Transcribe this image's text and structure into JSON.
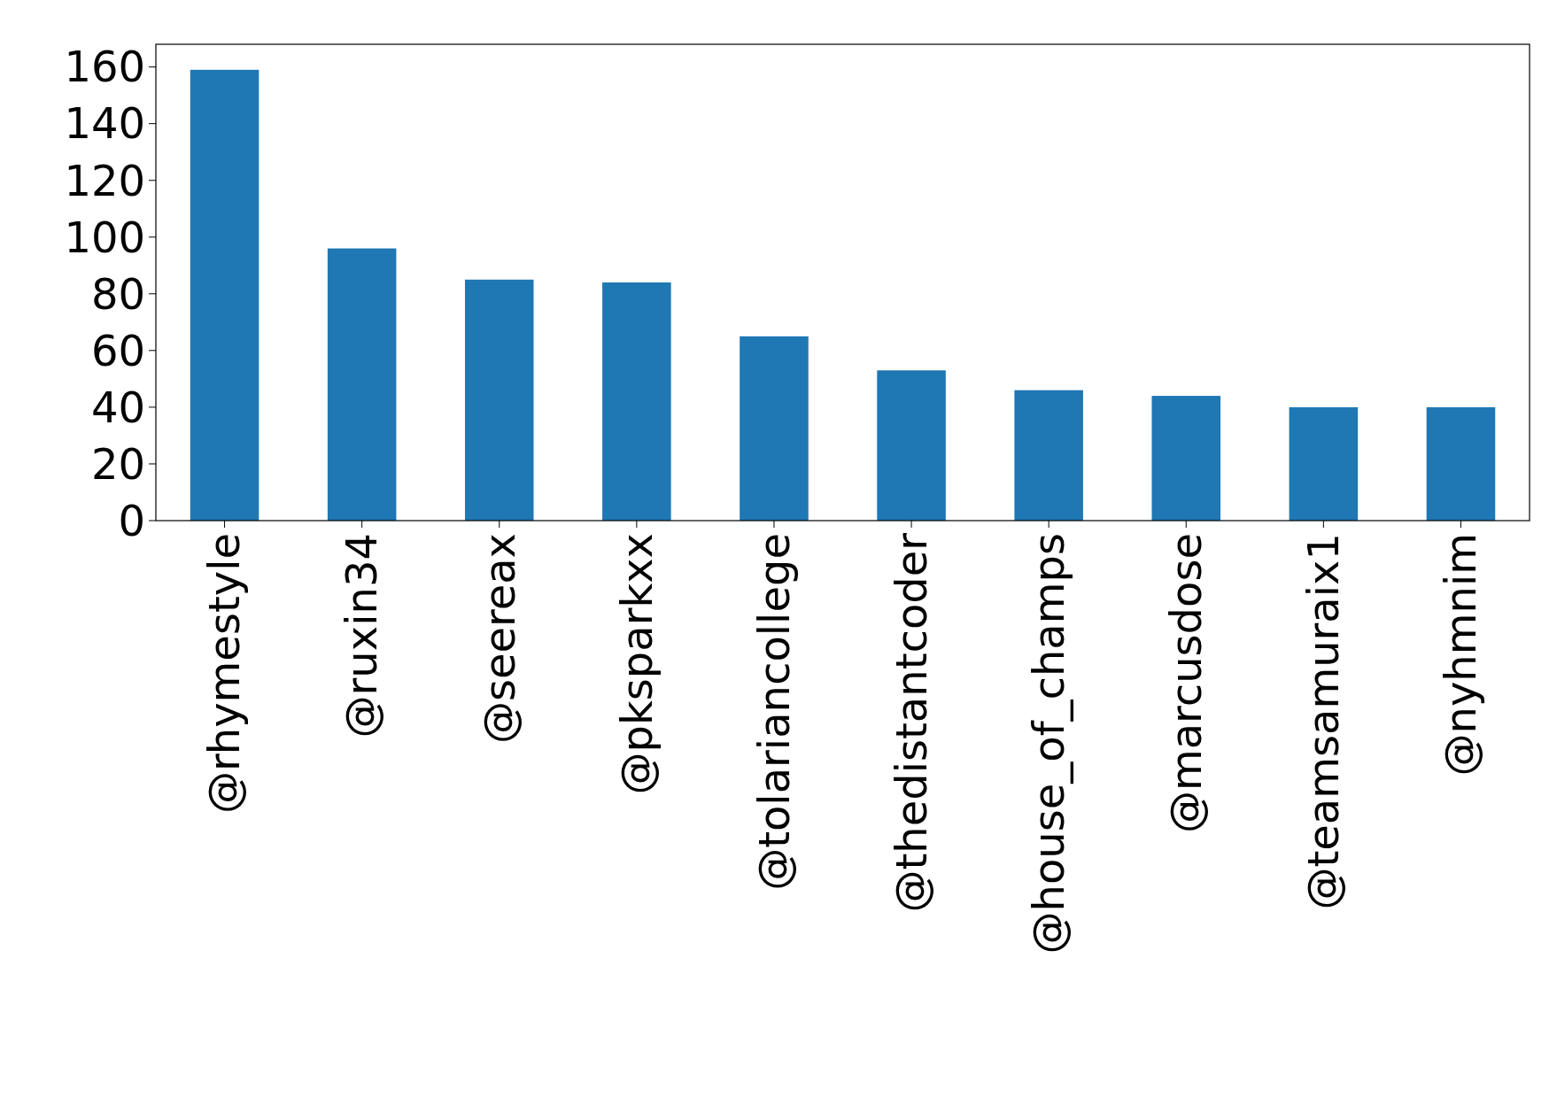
{
  "chart_data": {
    "type": "bar",
    "categories": [
      "@rhymestyle",
      "@ruxin34",
      "@seereax",
      "@pksparkxx",
      "@tolariancollege",
      "@thedistantcoder",
      "@house_of_champs",
      "@marcusdose",
      "@teamsamuraix1",
      "@nyhmnim"
    ],
    "values": [
      159,
      96,
      85,
      84,
      65,
      53,
      46,
      44,
      40,
      40
    ],
    "color": "#1f77b4",
    "ylim": [
      0,
      168
    ],
    "yticks": [
      0,
      20,
      40,
      60,
      80,
      100,
      120,
      140,
      160
    ],
    "grid": false
  }
}
